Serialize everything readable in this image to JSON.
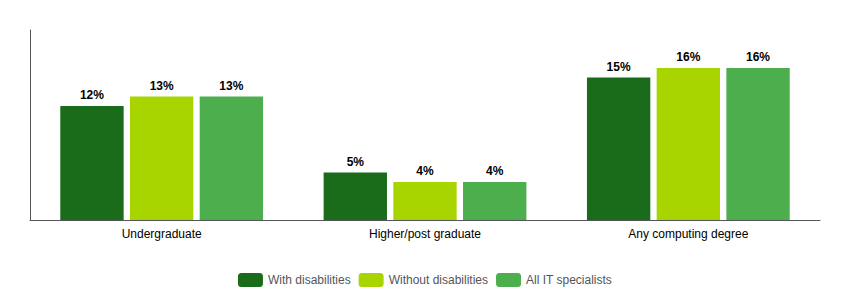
{
  "chart_data": {
    "type": "bar",
    "categories": [
      "Undergraduate",
      "Higher/post graduate",
      "Any computing degree"
    ],
    "series": [
      {
        "name": "With disabilities",
        "color": "#1a6b1a",
        "values": [
          12,
          5,
          15
        ],
        "value_labels": [
          "12%",
          "5%",
          "15%"
        ]
      },
      {
        "name": "Without disabilities",
        "color": "#a8d400",
        "values": [
          13,
          4,
          16
        ],
        "value_labels": [
          "13%",
          "4%",
          "16%"
        ]
      },
      {
        "name": "All IT specialists",
        "color": "#4cae4c",
        "values": [
          13,
          4,
          16
        ],
        "value_labels": [
          "13%",
          "4%",
          "16%"
        ]
      }
    ],
    "ylim": [
      0,
      20
    ],
    "grid": false,
    "legend": "bottom",
    "data_labels": true,
    "tick_labels": "x"
  }
}
